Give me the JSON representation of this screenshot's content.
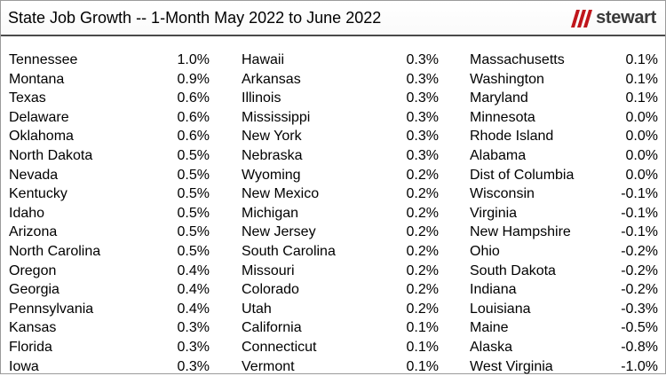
{
  "title": "State Job Growth -- 1-Month May 2022 to June 2022",
  "logo": {
    "text": "stewart",
    "icon": "stewart-logo-icon",
    "color": "#c0151b"
  },
  "columns": [
    [
      {
        "state": "Tennessee",
        "value": "1.0%"
      },
      {
        "state": "Montana",
        "value": "0.9%"
      },
      {
        "state": "Texas",
        "value": "0.6%"
      },
      {
        "state": "Delaware",
        "value": "0.6%"
      },
      {
        "state": "Oklahoma",
        "value": "0.6%"
      },
      {
        "state": "North Dakota",
        "value": "0.5%"
      },
      {
        "state": "Nevada",
        "value": "0.5%"
      },
      {
        "state": "Kentucky",
        "value": "0.5%"
      },
      {
        "state": "Idaho",
        "value": "0.5%"
      },
      {
        "state": "Arizona",
        "value": "0.5%"
      },
      {
        "state": "North Carolina",
        "value": "0.5%"
      },
      {
        "state": "Oregon",
        "value": "0.4%"
      },
      {
        "state": "Georgia",
        "value": "0.4%"
      },
      {
        "state": "Pennsylvania",
        "value": "0.4%"
      },
      {
        "state": "Kansas",
        "value": "0.3%"
      },
      {
        "state": "Florida",
        "value": "0.3%"
      },
      {
        "state": "Iowa",
        "value": "0.3%"
      }
    ],
    [
      {
        "state": "Hawaii",
        "value": "0.3%"
      },
      {
        "state": "Arkansas",
        "value": "0.3%"
      },
      {
        "state": "Illinois",
        "value": "0.3%"
      },
      {
        "state": "Mississippi",
        "value": "0.3%"
      },
      {
        "state": "New York",
        "value": "0.3%"
      },
      {
        "state": "Nebraska",
        "value": "0.3%"
      },
      {
        "state": "Wyoming",
        "value": "0.2%"
      },
      {
        "state": "New Mexico",
        "value": "0.2%"
      },
      {
        "state": "Michigan",
        "value": "0.2%"
      },
      {
        "state": "New Jersey",
        "value": "0.2%"
      },
      {
        "state": "South Carolina",
        "value": "0.2%"
      },
      {
        "state": "Missouri",
        "value": "0.2%"
      },
      {
        "state": "Colorado",
        "value": "0.2%"
      },
      {
        "state": "Utah",
        "value": "0.2%"
      },
      {
        "state": "California",
        "value": "0.1%"
      },
      {
        "state": "Connecticut",
        "value": "0.1%"
      },
      {
        "state": "Vermont",
        "value": "0.1%"
      }
    ],
    [
      {
        "state": "Massachusetts",
        "value": "0.1%"
      },
      {
        "state": "Washington",
        "value": "0.1%"
      },
      {
        "state": "Maryland",
        "value": "0.1%"
      },
      {
        "state": "Minnesota",
        "value": "0.0%"
      },
      {
        "state": "Rhode Island",
        "value": "0.0%"
      },
      {
        "state": "Alabama",
        "value": "0.0%"
      },
      {
        "state": "Dist of Columbia",
        "value": "0.0%"
      },
      {
        "state": "Wisconsin",
        "value": "-0.1%"
      },
      {
        "state": "Virginia",
        "value": "-0.1%"
      },
      {
        "state": "New Hampshire",
        "value": "-0.1%"
      },
      {
        "state": "Ohio",
        "value": "-0.2%"
      },
      {
        "state": "South Dakota",
        "value": "-0.2%"
      },
      {
        "state": "Indiana",
        "value": "-0.2%"
      },
      {
        "state": "Louisiana",
        "value": "-0.3%"
      },
      {
        "state": "Maine",
        "value": "-0.5%"
      },
      {
        "state": "Alaska",
        "value": "-0.8%"
      },
      {
        "state": "West Virginia",
        "value": "-1.0%"
      }
    ]
  ]
}
